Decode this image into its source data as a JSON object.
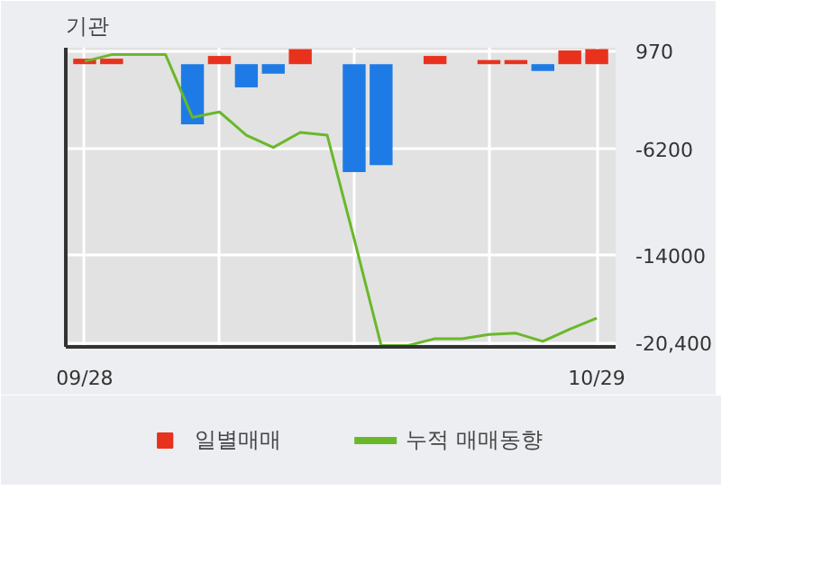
{
  "chart_data": {
    "type": "bar",
    "title": "기관",
    "categories": [
      "09/28",
      null,
      null,
      null,
      null,
      null,
      null,
      null,
      null,
      null,
      null,
      null,
      null,
      null,
      null,
      null,
      null,
      null,
      null,
      "10/29"
    ],
    "series": [
      {
        "name": "일별매매",
        "colors": [
          "#e8321e",
          "#e8321e",
          null,
          null,
          "#1e7be6",
          "#e8321e",
          "#1e7be6",
          "#1e7be6",
          "#e8321e",
          null,
          "#1e7be6",
          "#1e7be6",
          null,
          "#e8321e",
          null,
          "#e8321e",
          "#e8321e",
          "#1e7be6",
          "#e8321e",
          "#e8321e"
        ],
        "values": [
          400,
          400,
          null,
          null,
          -4400,
          600,
          -1700,
          -700,
          1100,
          null,
          -7900,
          -7400,
          null,
          600,
          null,
          300,
          300,
          -500,
          1000,
          1100
        ]
      },
      {
        "name": "누적 매매동향",
        "type": "line",
        "color": "#6ab82a",
        "values": [
          200,
          700,
          700,
          700,
          -3900,
          -3500,
          -5200,
          -6100,
          -5000,
          -5200,
          -12800,
          -20600,
          -20600,
          -20100,
          -20100,
          -19800,
          -19700,
          -20300,
          -19400,
          -18600
        ]
      }
    ],
    "ylim": [
      -20700,
      1200
    ],
    "yticks": [
      970,
      -6200,
      -14000,
      {
        "value": -20400,
        "label": "-20,400"
      }
    ],
    "grid": true,
    "legend": "bottom"
  }
}
